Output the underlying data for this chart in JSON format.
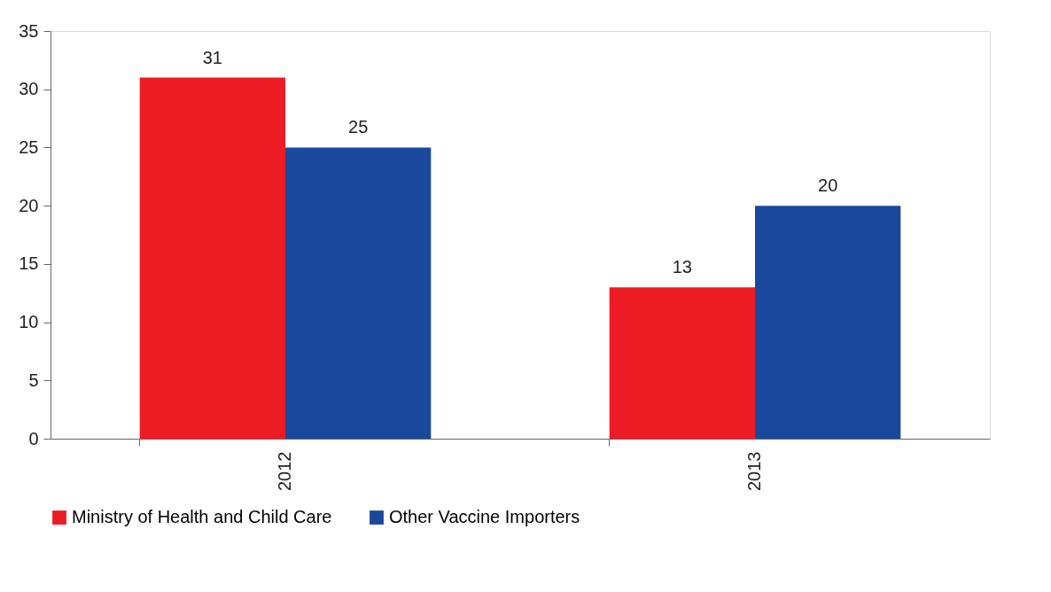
{
  "chart_data": {
    "type": "bar",
    "categories": [
      "2012",
      "2013"
    ],
    "series": [
      {
        "name": "Ministry of Health and Child Care",
        "color": "#ed1c24",
        "values": [
          31,
          13
        ]
      },
      {
        "name": "Other Vaccine Importers",
        "color": "#1a489c",
        "values": [
          25,
          20
        ]
      }
    ],
    "ylim": [
      0,
      35
    ],
    "yticks": [
      0,
      5,
      10,
      15,
      20,
      25,
      30,
      35
    ],
    "data_labels": true,
    "legend": "bottom",
    "grid": false
  }
}
